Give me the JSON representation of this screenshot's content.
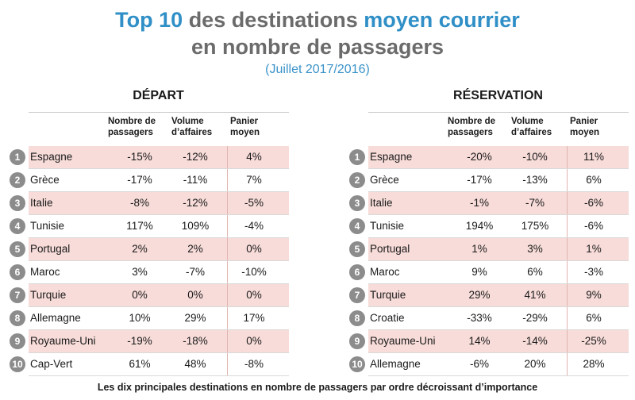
{
  "title": {
    "line1_part1": "Top 10",
    "line1_part2": "des destinations",
    "line1_part3": "moyen courrier",
    "line2": "en nombre de passagers",
    "subtitle": "(Juillet 2017/2016)"
  },
  "tables": [
    {
      "title": "DÉPART",
      "columns": [
        "Nombre de\npassagers",
        "Volume\nd’affaires",
        "Panier\nmoyen"
      ],
      "rows": [
        {
          "rank": "1",
          "name": "Espagne",
          "values": [
            "-15%",
            "-12%",
            "4%"
          ]
        },
        {
          "rank": "2",
          "name": "Grèce",
          "values": [
            "-17%",
            "-11%",
            "7%"
          ]
        },
        {
          "rank": "3",
          "name": "Italie",
          "values": [
            "-8%",
            "-12%",
            "-5%"
          ]
        },
        {
          "rank": "4",
          "name": "Tunisie",
          "values": [
            "117%",
            "109%",
            "-4%"
          ]
        },
        {
          "rank": "5",
          "name": "Portugal",
          "values": [
            "2%",
            "2%",
            "0%"
          ]
        },
        {
          "rank": "6",
          "name": "Maroc",
          "values": [
            "3%",
            "-7%",
            "-10%"
          ]
        },
        {
          "rank": "7",
          "name": "Turquie",
          "values": [
            "0%",
            "0%",
            "0%"
          ]
        },
        {
          "rank": "8",
          "name": "Allemagne",
          "values": [
            "10%",
            "29%",
            "17%"
          ]
        },
        {
          "rank": "9",
          "name": "Royaume-Uni",
          "values": [
            "-19%",
            "-18%",
            "0%"
          ]
        },
        {
          "rank": "10",
          "name": "Cap-Vert",
          "values": [
            "61%",
            "48%",
            "-8%"
          ]
        }
      ]
    },
    {
      "title": "RÉSERVATION",
      "columns": [
        "Nombre de\npassagers",
        "Volume\nd’affaires",
        "Panier\nmoyen"
      ],
      "rows": [
        {
          "rank": "1",
          "name": "Espagne",
          "values": [
            "-20%",
            "-10%",
            "11%"
          ]
        },
        {
          "rank": "2",
          "name": "Grèce",
          "values": [
            "-17%",
            "-13%",
            "6%"
          ]
        },
        {
          "rank": "3",
          "name": "Italie",
          "values": [
            "-1%",
            "-7%",
            "-6%"
          ]
        },
        {
          "rank": "4",
          "name": "Tunisie",
          "values": [
            "194%",
            "175%",
            "-6%"
          ]
        },
        {
          "rank": "5",
          "name": "Portugal",
          "values": [
            "1%",
            "3%",
            "1%"
          ]
        },
        {
          "rank": "6",
          "name": "Maroc",
          "values": [
            "9%",
            "6%",
            "-3%"
          ]
        },
        {
          "rank": "7",
          "name": "Turquie",
          "values": [
            "29%",
            "41%",
            "9%"
          ]
        },
        {
          "rank": "8",
          "name": "Croatie",
          "values": [
            "-33%",
            "-29%",
            "6%"
          ]
        },
        {
          "rank": "9",
          "name": "Royaume-Uni",
          "values": [
            "14%",
            "-14%",
            "-25%"
          ]
        },
        {
          "rank": "10",
          "name": "Allemagne",
          "values": [
            "-6%",
            "20%",
            "28%"
          ]
        }
      ]
    }
  ],
  "caption": "Les dix principales destinations en nombre de passagers par ordre décroissant d’importance",
  "colors": {
    "title_blue": "#2f8fc6",
    "row_shade": "#f7dcd9",
    "rank_circle": "#8c8c8c"
  }
}
